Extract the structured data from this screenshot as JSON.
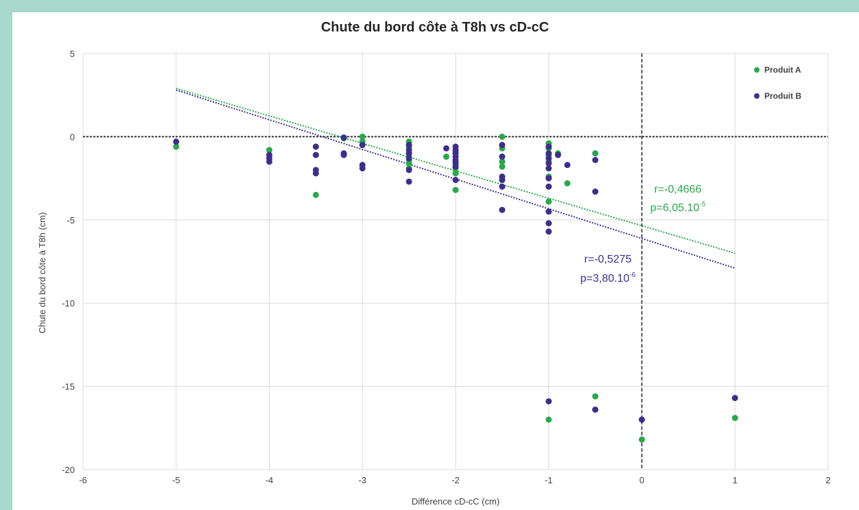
{
  "chart_data": {
    "type": "scatter",
    "title": "Chute du bord côte à T8h vs cD-cC",
    "xlabel": "Différence cD-cC (cm)",
    "ylabel": "Chute du bord côte à T8h (cm)",
    "xlim": [
      -6,
      2
    ],
    "ylim": [
      -20,
      5
    ],
    "xticks": [
      -6,
      -5,
      -4,
      -3,
      -2,
      -1,
      0,
      1,
      2
    ],
    "yticks": [
      5,
      0,
      -5,
      -10,
      -15,
      -20
    ],
    "xtick_labels": [
      "-6",
      "-5",
      "-4",
      "-3",
      "-2",
      "-1",
      "0",
      "1",
      "2"
    ],
    "ytick_labels": [
      "5",
      "0",
      "-5",
      "-10",
      "-15",
      "-20"
    ],
    "grid": true,
    "legend_position": "top-right",
    "reference_lines": {
      "horizontal_y": 0,
      "vertical_x": 0
    },
    "series": [
      {
        "name": "Produit A",
        "color": "#2aa84a",
        "points": [
          [
            -5,
            -0.6
          ],
          [
            -4,
            -0.8
          ],
          [
            -3.5,
            -0.6
          ],
          [
            -3.5,
            -3.5
          ],
          [
            -3.2,
            -0.1
          ],
          [
            -3,
            0
          ],
          [
            -3,
            -0.3
          ],
          [
            -3,
            -0.5
          ],
          [
            -2.5,
            -0.3
          ],
          [
            -2.5,
            -0.6
          ],
          [
            -2.5,
            -1.0
          ],
          [
            -2.5,
            -1.2
          ],
          [
            -2.5,
            -1.4
          ],
          [
            -2.5,
            -1.6
          ],
          [
            -2.5,
            -1.9
          ],
          [
            -2.1,
            -1.2
          ],
          [
            -2,
            -0.9
          ],
          [
            -2,
            -1.5
          ],
          [
            -2,
            -1.9
          ],
          [
            -2,
            -2.2
          ],
          [
            -2,
            -3.2
          ],
          [
            -1.5,
            0
          ],
          [
            -1.5,
            -0.7
          ],
          [
            -1.5,
            -1.5
          ],
          [
            -1.5,
            -1.8
          ],
          [
            -1.5,
            -2.6
          ],
          [
            -1,
            -0.4
          ],
          [
            -1,
            -0.7
          ],
          [
            -1,
            -1.1
          ],
          [
            -1,
            -1.5
          ],
          [
            -1,
            -2.4
          ],
          [
            -1,
            -3.9
          ],
          [
            -0.9,
            -1.0
          ],
          [
            -0.8,
            -2.8
          ],
          [
            -0.5,
            -1.0
          ],
          [
            -1,
            -17.0
          ],
          [
            -0.5,
            -15.6
          ],
          [
            0,
            -18.2
          ],
          [
            1,
            -16.9
          ]
        ],
        "trendline": {
          "x": [
            -5,
            1
          ],
          "y": [
            2.9,
            -7.0
          ]
        },
        "stats": {
          "r": "r=-0,4666",
          "p": "p=6,05.10",
          "p_exp": "-5"
        }
      },
      {
        "name": "Produit B",
        "color": "#3d2e8e",
        "points": [
          [
            -5,
            -0.3
          ],
          [
            -4,
            -1.1
          ],
          [
            -4,
            -1.3
          ],
          [
            -4,
            -1.5
          ],
          [
            -3.5,
            -0.6
          ],
          [
            -3.5,
            -1.1
          ],
          [
            -3.5,
            -2.0
          ],
          [
            -3.5,
            -2.2
          ],
          [
            -3.2,
            -0.05
          ],
          [
            -3.2,
            -1.0
          ],
          [
            -3.2,
            -1.1
          ],
          [
            -3,
            -0.5
          ],
          [
            -3,
            -1.7
          ],
          [
            -3,
            -1.9
          ],
          [
            -2.5,
            -0.5
          ],
          [
            -2.5,
            -0.8
          ],
          [
            -2.5,
            -1.0
          ],
          [
            -2.5,
            -1.3
          ],
          [
            -2.5,
            -2.0
          ],
          [
            -2.5,
            -2.7
          ],
          [
            -2.1,
            -0.7
          ],
          [
            -2,
            -0.6
          ],
          [
            -2,
            -0.8
          ],
          [
            -2,
            -1.0
          ],
          [
            -2,
            -1.2
          ],
          [
            -2,
            -1.4
          ],
          [
            -2,
            -1.6
          ],
          [
            -2,
            -1.8
          ],
          [
            -2,
            -2.6
          ],
          [
            -1.5,
            -0.5
          ],
          [
            -1.5,
            -1.2
          ],
          [
            -1.5,
            -2.4
          ],
          [
            -1.5,
            -2.6
          ],
          [
            -1.5,
            -3.0
          ],
          [
            -1.5,
            -4.4
          ],
          [
            -1,
            -0.6
          ],
          [
            -1,
            -1.0
          ],
          [
            -1,
            -1.3
          ],
          [
            -1,
            -1.6
          ],
          [
            -1,
            -1.9
          ],
          [
            -1,
            -2.5
          ],
          [
            -1,
            -3.0
          ],
          [
            -1,
            -4.5
          ],
          [
            -1,
            -5.2
          ],
          [
            -1,
            -5.7
          ],
          [
            -0.9,
            -1.1
          ],
          [
            -0.8,
            -1.7
          ],
          [
            -0.5,
            -1.4
          ],
          [
            -0.5,
            -3.3
          ],
          [
            -1,
            -15.9
          ],
          [
            -0.5,
            -16.4
          ],
          [
            0,
            -17.0
          ],
          [
            1,
            -15.7
          ]
        ],
        "trendline": {
          "x": [
            -5,
            1
          ],
          "y": [
            2.8,
            -7.9
          ]
        },
        "stats": {
          "r": "r=-0,5275",
          "p": "p=3,80.10",
          "p_exp": "-6"
        }
      }
    ]
  }
}
